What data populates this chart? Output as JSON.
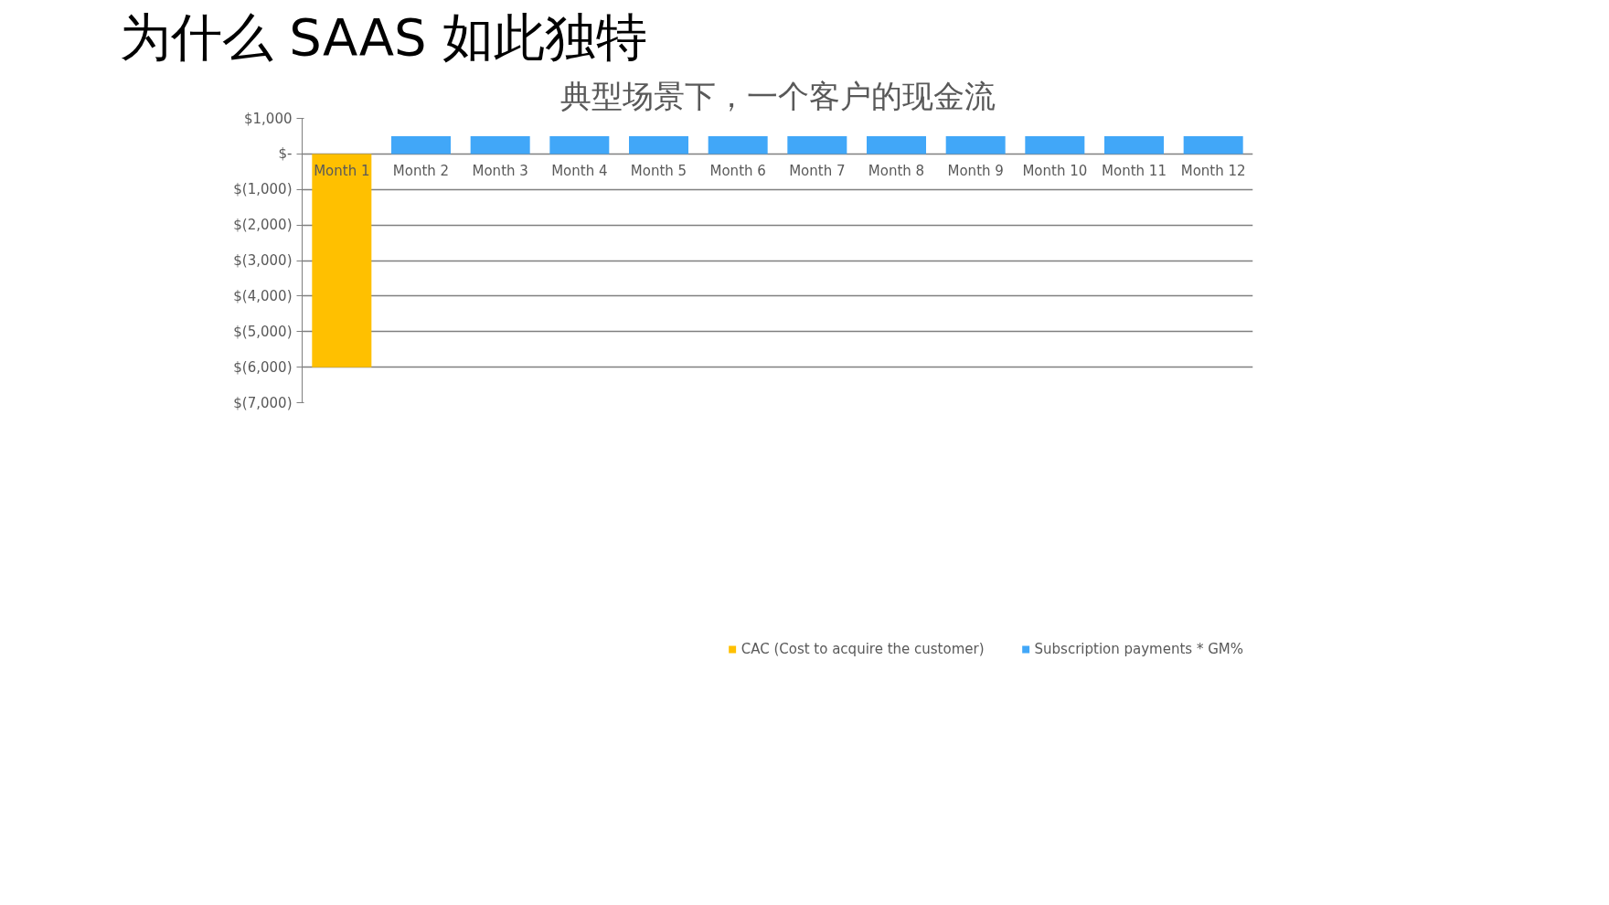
{
  "chart_data": {
    "type": "bar",
    "title": "为什么 SAAS 如此独特",
    "subtitle": "典型场景下，一个客户的现金流",
    "categories": [
      "Month 1",
      "Month 2",
      "Month 3",
      "Month 4",
      "Month 5",
      "Month 6",
      "Month 7",
      "Month 8",
      "Month 9",
      "Month 10",
      "Month 11",
      "Month 12"
    ],
    "series": [
      {
        "name": "CAC (Cost to acquire the customer)",
        "color": "#ffc000",
        "values": [
          -6000,
          null,
          null,
          null,
          null,
          null,
          null,
          null,
          null,
          null,
          null,
          null
        ]
      },
      {
        "name": "Subscription payments * GM%",
        "color": "#41a7f8",
        "values": [
          null,
          500,
          500,
          500,
          500,
          500,
          500,
          500,
          500,
          500,
          500,
          500
        ]
      }
    ],
    "ylim": [
      -7000,
      1000
    ],
    "yticks": [
      {
        "value": 1000,
        "label": "$1,000"
      },
      {
        "value": 0,
        "label": "$-"
      },
      {
        "value": -1000,
        "label": "$(1,000)"
      },
      {
        "value": -2000,
        "label": "$(2,000)"
      },
      {
        "value": -3000,
        "label": "$(3,000)"
      },
      {
        "value": -4000,
        "label": "$(4,000)"
      },
      {
        "value": -5000,
        "label": "$(5,000)"
      },
      {
        "value": -6000,
        "label": "$(6,000)"
      },
      {
        "value": -7000,
        "label": "$(7,000)"
      }
    ],
    "grid": "y",
    "legend": "bottom"
  }
}
